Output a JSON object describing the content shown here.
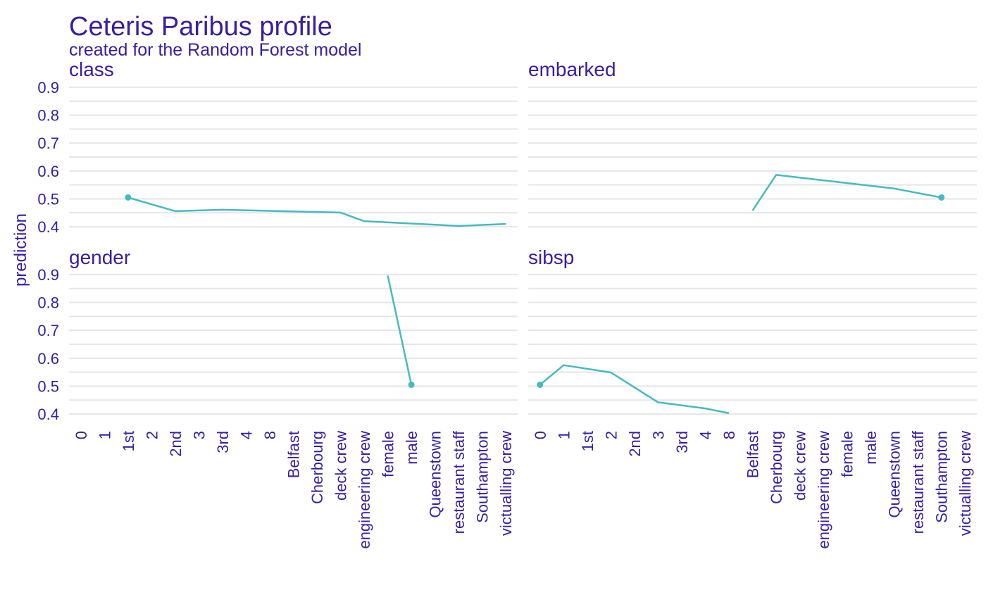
{
  "colors": {
    "text": "#371ea3",
    "line": "#46bac2",
    "grid": "#e6e6e6",
    "background": "#ffffff"
  },
  "chart_data": {
    "type": "line",
    "title": "Ceteris Paribus profile",
    "subtitle": "created for the Random Forest model",
    "ylabel": "prediction",
    "ylim": [
      0.38,
      0.92
    ],
    "yticks": [
      0.4,
      0.5,
      0.6,
      0.7,
      0.8,
      0.9
    ],
    "grid": true,
    "layout": "2x2 facets, shared x axis per column",
    "x_categories_left": [
      "0",
      "1",
      "1st",
      "2",
      "2nd",
      "3",
      "3rd",
      "4",
      "8",
      "Belfast",
      "Cherbourg",
      "deck crew",
      "engineering crew",
      "female",
      "male",
      "Queenstown",
      "restaurant staff",
      "Southampton",
      "victualling crew"
    ],
    "x_categories_right": [
      "0",
      "1",
      "1st",
      "2",
      "2nd",
      "3",
      "3rd",
      "4",
      "8",
      "Belfast",
      "Cherbourg",
      "deck crew",
      "engineering crew",
      "female",
      "male",
      "Queenstown",
      "restaurant staff",
      "Southampton",
      "victualling crew"
    ],
    "panels": [
      {
        "name": "class",
        "categories": [
          "1st",
          "2nd",
          "3rd",
          "deck crew",
          "engineering crew",
          "restaurant staff",
          "victualling crew"
        ],
        "values": [
          0.505,
          0.456,
          0.461,
          0.451,
          0.42,
          0.403,
          0.41
        ],
        "observation": {
          "x": "1st",
          "y": 0.505
        }
      },
      {
        "name": "embarked",
        "categories": [
          "Belfast",
          "Cherbourg",
          "Queenstown",
          "Southampton"
        ],
        "values": [
          0.458,
          0.586,
          0.537,
          0.505
        ],
        "observation": {
          "x": "Southampton",
          "y": 0.505
        }
      },
      {
        "name": "gender",
        "categories": [
          "female",
          "male"
        ],
        "values": [
          0.896,
          0.505
        ],
        "observation": {
          "x": "male",
          "y": 0.505
        }
      },
      {
        "name": "sibsp",
        "categories": [
          "0",
          "1",
          "2",
          "3",
          "4",
          "8"
        ],
        "values": [
          0.505,
          0.575,
          0.549,
          0.442,
          0.42,
          0.403
        ],
        "observation": {
          "x": "0",
          "y": 0.505
        }
      }
    ]
  }
}
